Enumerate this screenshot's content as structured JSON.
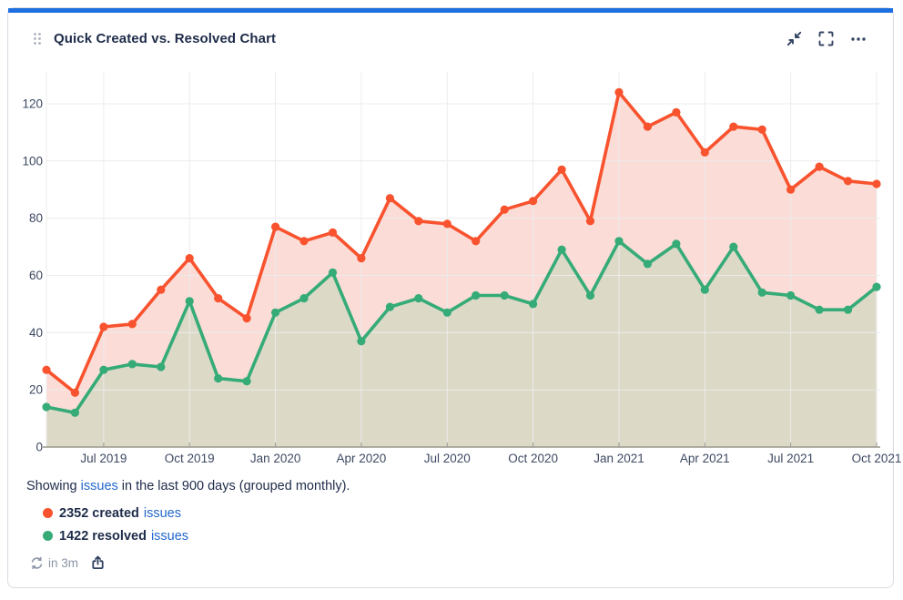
{
  "card": {
    "title": "Quick Created vs. Resolved Chart",
    "icons": {
      "drag_handle": "six-dot drag grip",
      "collapse": "two diagonal arrows pointing inward",
      "fullscreen": "four corner brackets",
      "more_options": "horizontal ellipsis"
    }
  },
  "chart_data": {
    "type": "line",
    "title": "Quick Created vs. Resolved Chart",
    "grouping": "monthly",
    "period_days": 900,
    "x": [
      "May 2019",
      "Jun 2019",
      "Jul 2019",
      "Aug 2019",
      "Sep 2019",
      "Oct 2019",
      "Nov 2019",
      "Dec 2019",
      "Jan 2020",
      "Feb 2020",
      "Mar 2020",
      "Apr 2020",
      "May 2020",
      "Jun 2020",
      "Jul 2020",
      "Aug 2020",
      "Sep 2020",
      "Oct 2020",
      "Nov 2020",
      "Dec 2020",
      "Jan 2021",
      "Feb 2021",
      "Mar 2021",
      "Apr 2021",
      "May 2021",
      "Jun 2021",
      "Jul 2021",
      "Aug 2021",
      "Sep 2021",
      "Oct 2021"
    ],
    "x_tick_labels": [
      "Jul 2019",
      "Oct 2019",
      "Jan 2020",
      "Apr 2020",
      "Jul 2020",
      "Oct 2020",
      "Jan 2021",
      "Apr 2021",
      "Jul 2021",
      "Oct 2021"
    ],
    "x_tick_indices": [
      2,
      5,
      8,
      11,
      14,
      17,
      20,
      23,
      26,
      29
    ],
    "y_ticks": [
      0,
      20,
      40,
      60,
      80,
      100,
      120
    ],
    "ylim": [
      0,
      133
    ],
    "grid": true,
    "legend_position": "below",
    "series": [
      {
        "name": "created",
        "total": 2352,
        "color": "#f8532e",
        "fill": "#fbdcd7",
        "values": [
          27,
          19,
          42,
          43,
          55,
          66,
          52,
          45,
          77,
          72,
          75,
          66,
          87,
          79,
          78,
          72,
          83,
          86,
          97,
          79,
          124,
          112,
          117,
          103,
          112,
          111,
          90,
          98,
          93,
          92
        ]
      },
      {
        "name": "resolved",
        "total": 1422,
        "color": "#35ab77",
        "fill": "#dcd9c7",
        "values": [
          14,
          12,
          27,
          29,
          28,
          51,
          24,
          23,
          47,
          52,
          61,
          37,
          49,
          52,
          47,
          53,
          53,
          50,
          69,
          53,
          72,
          64,
          71,
          55,
          70,
          54,
          53,
          48,
          48,
          56
        ]
      }
    ]
  },
  "caption": {
    "prefix": "Showing ",
    "link": "issues",
    "suffix": " in the last 900 days (grouped monthly)."
  },
  "legend": [
    {
      "count_label": "2352 created",
      "link": "issues",
      "color": "#f8532e"
    },
    {
      "count_label": "1422 resolved",
      "link": "issues",
      "color": "#35ab77"
    }
  ],
  "footer": {
    "refresh_text": "in 3m",
    "refresh_icon": "circular sync arrows",
    "share_icon": "box with up arrow"
  },
  "colors": {
    "accent_bar": "#1d6fe0",
    "link": "#2268cd",
    "gridline": "#ececec",
    "axis": "#98978d",
    "tick_text": "#3d4961",
    "header_icon": "#344563",
    "muted": "#8b95a6"
  }
}
